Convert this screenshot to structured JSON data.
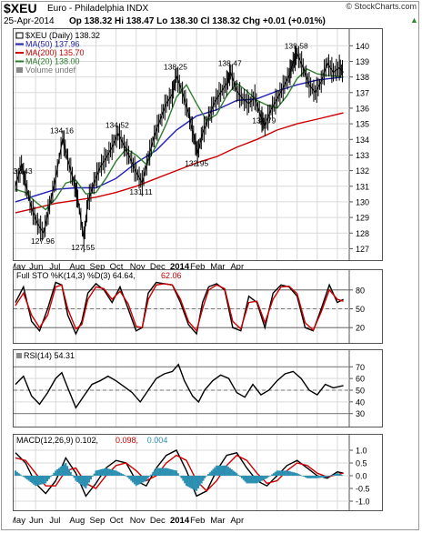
{
  "header": {
    "symbol": "$XEU",
    "name": "Euro - Philadelphia INDX",
    "copyright": "© StockCharts.com",
    "date": "25-Apr-2014",
    "quote": "Op 138.32 Hi 138.47 Lo 138.30 Cl 138.32 Chg +0.01 (+0.01%)",
    "up_arrow_color": "#2e8b2e"
  },
  "chart_data": [
    {
      "type": "line",
      "panel": "price",
      "title": "$XEU (Daily) 138.32",
      "legend_position": "top-left",
      "grid": true,
      "ylim": [
        126.5,
        140.6
      ],
      "yticks": [
        127,
        128,
        129,
        130,
        131,
        132,
        133,
        134,
        135,
        136,
        137,
        138,
        139,
        140
      ],
      "x_labels": [
        "May",
        "Jun",
        "Jul",
        "Aug",
        "Sep",
        "Oct",
        "Nov",
        "Dec",
        "2014",
        "Feb",
        "Mar",
        "Apr"
      ],
      "legend": [
        {
          "label": "$XEU (Daily) 138.32",
          "color": "#000000"
        },
        {
          "label": "MA(50) 137.96",
          "color": "#1f1fb4"
        },
        {
          "label": "MA(200) 135.70",
          "color": "#cc0000"
        },
        {
          "label": "MA(20) 138.00",
          "color": "#2e7d2e"
        },
        {
          "label": "Volume undef",
          "color": "#777777"
        }
      ],
      "annotations": [
        {
          "text": "132.43",
          "x": 0.3,
          "y": 132.43
        },
        {
          "text": "127.96",
          "x": 1.4,
          "y": 127.96
        },
        {
          "text": "134.16",
          "x": 2.35,
          "y": 134.16
        },
        {
          "text": "127.55",
          "x": 3.4,
          "y": 127.55
        },
        {
          "text": "134.52",
          "x": 5.1,
          "y": 134.52
        },
        {
          "text": "131.11",
          "x": 6.3,
          "y": 131.11
        },
        {
          "text": "138.25",
          "x": 8.0,
          "y": 138.25
        },
        {
          "text": "132.95",
          "x": 9.05,
          "y": 132.95
        },
        {
          "text": "138.47",
          "x": 10.7,
          "y": 138.47
        },
        {
          "text": "134.79",
          "x": 12.4,
          "y": 134.79
        },
        {
          "text": "139.58",
          "x": 14.0,
          "y": 139.58
        }
      ],
      "series": [
        {
          "name": "$XEU (Daily)",
          "color": "#000000",
          "x": [
            0.0,
            0.3,
            0.5,
            0.8,
            1.1,
            1.4,
            1.7,
            2.0,
            2.35,
            2.6,
            2.9,
            3.1,
            3.4,
            3.6,
            3.9,
            4.2,
            4.5,
            4.8,
            5.1,
            5.4,
            5.7,
            6.0,
            6.3,
            6.6,
            6.9,
            7.2,
            7.5,
            7.8,
            8.0,
            8.3,
            8.6,
            8.85,
            9.05,
            9.3,
            9.6,
            9.9,
            10.2,
            10.5,
            10.7,
            11.0,
            11.3,
            11.6,
            11.9,
            12.2,
            12.4,
            12.7,
            13.0,
            13.3,
            13.6,
            13.8,
            14.0,
            14.3,
            14.6,
            14.9,
            15.2,
            15.5,
            15.8,
            16.1,
            16.3
          ],
          "values": [
            131.0,
            132.4,
            131.2,
            129.6,
            128.6,
            128.0,
            129.8,
            131.5,
            134.1,
            132.7,
            131.3,
            130.2,
            127.6,
            130.0,
            131.2,
            132.2,
            132.8,
            133.5,
            134.4,
            133.6,
            132.8,
            131.9,
            131.2,
            132.8,
            134.2,
            135.3,
            136.3,
            136.9,
            138.1,
            137.0,
            135.7,
            134.3,
            133.1,
            134.4,
            135.4,
            136.4,
            137.0,
            137.6,
            138.3,
            137.1,
            136.6,
            136.3,
            136.7,
            135.4,
            134.9,
            135.9,
            136.6,
            137.3,
            138.1,
            138.9,
            139.5,
            138.6,
            137.5,
            137.0,
            137.7,
            138.9,
            138.3,
            138.6,
            138.3
          ]
        },
        {
          "name": "MA(50)",
          "color": "#1f1fb4",
          "x": [
            0.0,
            1.0,
            2.0,
            3.0,
            4.0,
            5.0,
            6.0,
            7.0,
            8.0,
            9.0,
            10.0,
            11.0,
            12.0,
            13.0,
            14.0,
            15.0,
            16.3
          ],
          "values": [
            130.0,
            130.4,
            130.8,
            130.9,
            130.9,
            131.5,
            132.5,
            133.3,
            134.6,
            135.5,
            135.9,
            136.5,
            136.6,
            137.1,
            137.5,
            137.8,
            138.0
          ]
        },
        {
          "name": "MA(200)",
          "color": "#cc0000",
          "x": [
            0.0,
            1.0,
            2.0,
            3.0,
            4.0,
            5.0,
            6.0,
            7.0,
            8.0,
            9.0,
            10.0,
            11.0,
            12.0,
            13.0,
            14.0,
            15.0,
            16.3
          ],
          "values": [
            129.3,
            129.6,
            129.9,
            130.1,
            130.3,
            130.6,
            131.0,
            131.5,
            132.0,
            132.5,
            132.9,
            133.5,
            134.0,
            134.6,
            135.0,
            135.3,
            135.7
          ]
        },
        {
          "name": "MA(20)",
          "color": "#2e7d2e",
          "x": [
            0.0,
            0.5,
            1.0,
            1.5,
            2.0,
            2.5,
            3.0,
            3.5,
            4.0,
            4.5,
            5.0,
            5.5,
            6.0,
            6.5,
            7.0,
            7.5,
            8.0,
            8.5,
            9.0,
            9.5,
            10.0,
            10.5,
            11.0,
            11.5,
            12.0,
            12.5,
            13.0,
            13.5,
            14.0,
            14.5,
            15.0,
            15.5,
            16.3
          ],
          "values": [
            130.8,
            130.6,
            130.0,
            129.5,
            130.2,
            131.2,
            131.4,
            130.5,
            130.6,
            131.5,
            132.6,
            133.4,
            133.0,
            132.4,
            133.6,
            135.0,
            136.7,
            137.5,
            136.3,
            135.2,
            135.6,
            136.8,
            137.6,
            137.1,
            136.5,
            136.2,
            136.0,
            136.8,
            137.9,
            138.5,
            138.2,
            138.1,
            138.0
          ]
        }
      ]
    },
    {
      "type": "line",
      "panel": "stochastic",
      "title": "Full STO %K(14,3) %D(3) 64.64, 62.06",
      "legend": [
        {
          "label": "Full STO %K(14,3) %D(3) 64.64,",
          "color": "#000000"
        },
        {
          "label": "62.06",
          "color": "#cc0000"
        }
      ],
      "ylim": [
        0,
        100
      ],
      "yticks": [
        20,
        50,
        80
      ],
      "reference_lines": [
        20,
        50,
        80
      ],
      "series": [
        {
          "name": "%K",
          "color": "#000000",
          "x": [
            0.0,
            0.4,
            0.8,
            1.2,
            1.6,
            2.0,
            2.3,
            2.6,
            3.0,
            3.3,
            3.6,
            4.0,
            4.4,
            4.8,
            5.2,
            5.6,
            6.0,
            6.3,
            6.6,
            7.0,
            7.4,
            7.8,
            8.2,
            8.6,
            9.0,
            9.3,
            9.6,
            10.0,
            10.4,
            10.8,
            11.2,
            11.6,
            12.0,
            12.4,
            12.8,
            13.2,
            13.6,
            14.0,
            14.4,
            14.8,
            15.2,
            15.6,
            16.0,
            16.3
          ],
          "values": [
            60,
            85,
            30,
            15,
            50,
            92,
            88,
            40,
            10,
            30,
            75,
            90,
            80,
            60,
            85,
            50,
            15,
            20,
            75,
            92,
            90,
            88,
            60,
            25,
            10,
            60,
            85,
            90,
            80,
            20,
            15,
            70,
            60,
            20,
            75,
            88,
            85,
            70,
            20,
            15,
            50,
            88,
            60,
            65
          ]
        },
        {
          "name": "%D",
          "color": "#cc0000",
          "x": [
            0.0,
            0.4,
            0.8,
            1.2,
            1.6,
            2.0,
            2.3,
            2.6,
            3.0,
            3.3,
            3.6,
            4.0,
            4.4,
            4.8,
            5.2,
            5.6,
            6.0,
            6.3,
            6.6,
            7.0,
            7.4,
            7.8,
            8.2,
            8.6,
            9.0,
            9.3,
            9.6,
            10.0,
            10.4,
            10.8,
            11.2,
            11.6,
            12.0,
            12.4,
            12.8,
            13.2,
            13.6,
            14.0,
            14.4,
            14.8,
            15.2,
            15.6,
            16.0,
            16.3
          ],
          "values": [
            55,
            75,
            40,
            20,
            40,
            85,
            88,
            50,
            18,
            25,
            65,
            85,
            82,
            65,
            78,
            58,
            22,
            20,
            65,
            88,
            90,
            88,
            65,
            30,
            15,
            50,
            80,
            88,
            82,
            30,
            18,
            60,
            62,
            28,
            65,
            85,
            86,
            74,
            28,
            16,
            45,
            80,
            65,
            62
          ]
        }
      ]
    },
    {
      "type": "line",
      "panel": "rsi",
      "title": "RSI(14) 54.31",
      "legend": [
        {
          "label": "RSI(14) 54.31",
          "color": "#000000"
        }
      ],
      "ylim": [
        22,
        78
      ],
      "yticks": [
        30,
        40,
        50,
        60,
        70
      ],
      "reference_lines": [
        30,
        50,
        70
      ],
      "series": [
        {
          "name": "RSI(14)",
          "color": "#000000",
          "x": [
            0.0,
            0.4,
            0.8,
            1.2,
            1.6,
            2.0,
            2.3,
            2.6,
            3.0,
            3.4,
            3.8,
            4.2,
            4.6,
            5.0,
            5.4,
            5.8,
            6.2,
            6.6,
            7.0,
            7.4,
            7.8,
            8.1,
            8.4,
            8.8,
            9.1,
            9.4,
            9.8,
            10.2,
            10.6,
            11.0,
            11.4,
            11.8,
            12.2,
            12.6,
            13.0,
            13.4,
            13.8,
            14.2,
            14.6,
            15.0,
            15.4,
            15.8,
            16.3
          ],
          "values": [
            55,
            62,
            45,
            38,
            48,
            60,
            65,
            52,
            35,
            45,
            55,
            58,
            62,
            58,
            53,
            48,
            40,
            50,
            60,
            64,
            66,
            72,
            58,
            45,
            40,
            50,
            58,
            63,
            60,
            48,
            44,
            55,
            46,
            50,
            58,
            64,
            66,
            60,
            50,
            46,
            55,
            52,
            54
          ]
        }
      ]
    },
    {
      "type": "line",
      "panel": "macd",
      "title": "MACD(12,26,9) 0.102, 0.098, 0.004",
      "legend": [
        {
          "label": "MACD(12,26,9) 0.102,",
          "color": "#000000"
        },
        {
          "label": "0.098,",
          "color": "#cc0000"
        },
        {
          "label": "0.004",
          "color": "#2a8fb0"
        }
      ],
      "ylim": [
        -1.25,
        1.25
      ],
      "yticks": [
        -1.0,
        -0.5,
        0.0,
        0.5,
        1.0
      ],
      "x_labels": [
        "May",
        "Jun",
        "Jul",
        "Aug",
        "Sep",
        "Oct",
        "Nov",
        "Dec",
        "2014",
        "Feb",
        "Mar",
        "Apr"
      ],
      "series": [
        {
          "name": "MACD",
          "color": "#000000",
          "x": [
            0.0,
            0.5,
            1.0,
            1.5,
            2.0,
            2.5,
            3.0,
            3.5,
            4.0,
            4.5,
            5.0,
            5.5,
            6.0,
            6.5,
            7.0,
            7.5,
            8.0,
            8.5,
            9.0,
            9.5,
            10.0,
            10.5,
            11.0,
            11.5,
            12.0,
            12.5,
            13.0,
            13.5,
            14.0,
            14.5,
            15.0,
            15.5,
            16.0,
            16.3
          ],
          "values": [
            0.9,
            0.5,
            -0.3,
            -0.7,
            -0.2,
            0.7,
            0.1,
            -0.8,
            -0.3,
            0.3,
            0.6,
            0.5,
            -0.2,
            -0.4,
            0.3,
            0.8,
            1.0,
            0.2,
            -0.8,
            -0.6,
            0.2,
            0.8,
            0.9,
            0.3,
            -0.2,
            -0.4,
            0.0,
            0.4,
            0.6,
            0.3,
            0.0,
            -0.1,
            0.15,
            0.1
          ]
        },
        {
          "name": "Signal",
          "color": "#cc0000",
          "x": [
            0.0,
            0.5,
            1.0,
            1.5,
            2.0,
            2.5,
            3.0,
            3.5,
            4.0,
            4.5,
            5.0,
            5.5,
            6.0,
            6.5,
            7.0,
            7.5,
            8.0,
            8.5,
            9.0,
            9.5,
            10.0,
            10.5,
            11.0,
            11.5,
            12.0,
            12.5,
            13.0,
            13.5,
            14.0,
            14.5,
            15.0,
            15.5,
            16.0,
            16.3
          ],
          "values": [
            0.7,
            0.6,
            0.1,
            -0.4,
            -0.4,
            0.2,
            0.3,
            -0.3,
            -0.5,
            0.0,
            0.4,
            0.5,
            0.2,
            -0.2,
            0.0,
            0.5,
            0.8,
            0.6,
            -0.2,
            -0.6,
            -0.2,
            0.4,
            0.8,
            0.6,
            0.1,
            -0.3,
            -0.2,
            0.2,
            0.5,
            0.4,
            0.1,
            -0.05,
            0.05,
            0.1
          ]
        },
        {
          "name": "Histogram",
          "color": "#2a8fb0",
          "type": "bar",
          "x": [
            0.0,
            0.5,
            1.0,
            1.5,
            2.0,
            2.5,
            3.0,
            3.5,
            4.0,
            4.5,
            5.0,
            5.5,
            6.0,
            6.5,
            7.0,
            7.5,
            8.0,
            8.5,
            9.0,
            9.5,
            10.0,
            10.5,
            11.0,
            11.5,
            12.0,
            12.5,
            13.0,
            13.5,
            14.0,
            14.5,
            15.0,
            15.5,
            16.0,
            16.3
          ],
          "values": [
            0.2,
            -0.1,
            -0.4,
            -0.3,
            0.2,
            0.5,
            -0.2,
            -0.5,
            0.2,
            0.3,
            0.2,
            0.0,
            -0.4,
            -0.2,
            0.3,
            0.3,
            0.2,
            -0.4,
            -0.6,
            0.0,
            0.4,
            0.4,
            0.1,
            -0.3,
            -0.3,
            -0.1,
            0.2,
            0.2,
            0.1,
            -0.1,
            -0.1,
            -0.05,
            0.1,
            0.0
          ]
        }
      ]
    }
  ]
}
